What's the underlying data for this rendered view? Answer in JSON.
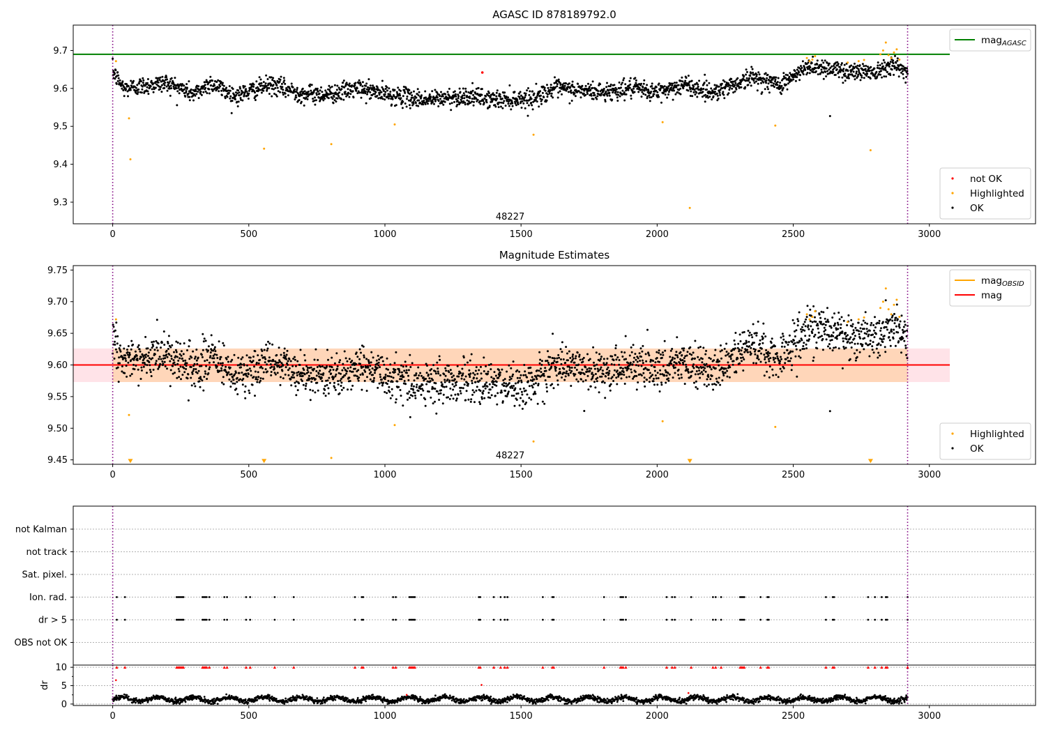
{
  "figure": {
    "panels": [
      {
        "title": "AGASC ID 878189792.0",
        "annotation": "48227"
      },
      {
        "title": "Magnitude Estimates",
        "annotation": "48227"
      },
      {
        "title": "",
        "annotation": ""
      }
    ]
  },
  "chart_data": [
    {
      "type": "scatter",
      "title": "AGASC ID 878189792.0",
      "xlabel": "",
      "ylabel": "",
      "xlim": [
        -145,
        3390
      ],
      "ylim": [
        9.243,
        9.767
      ],
      "xticks": [
        0,
        500,
        1000,
        1500,
        2000,
        2500,
        3000
      ],
      "yticks": [
        9.3,
        9.4,
        9.5,
        9.6,
        9.7
      ],
      "annotation": {
        "text": "48227",
        "x": 1460,
        "y": 9.245
      },
      "vlines": [
        {
          "x": 0,
          "color": "#800080",
          "style": "dotted"
        },
        {
          "x": 2920,
          "color": "#800080",
          "style": "dotted"
        }
      ],
      "hlines": [
        {
          "name": "mag_AGASC",
          "y": 9.69,
          "x_range": [
            -145,
            3075
          ],
          "color": "#008000"
        }
      ],
      "legend_top": {
        "position": "top-right",
        "entries": [
          {
            "label": "mag",
            "sub": "AGASC",
            "kind": "line",
            "color": "#008000"
          }
        ]
      },
      "legend_bottom": {
        "position": "bottom-right",
        "entries": [
          {
            "label": "not OK",
            "kind": "point",
            "color": "#ff0000"
          },
          {
            "label": "Highlighted",
            "kind": "point",
            "color": "#ffa500"
          },
          {
            "label": "OK",
            "kind": "point",
            "color": "#000000"
          }
        ]
      },
      "series": [
        {
          "name": "OK",
          "color": "#000000",
          "generator": {
            "x_range": [
              0,
              2920
            ],
            "count": 2400,
            "noise": 0.012,
            "trend": [
              [
                0,
                9.645
              ],
              [
                40,
                9.6
              ],
              [
                200,
                9.615
              ],
              [
                300,
                9.585
              ],
              [
                360,
                9.615
              ],
              [
                450,
                9.58
              ],
              [
                580,
                9.61
              ],
              [
                700,
                9.585
              ],
              [
                800,
                9.585
              ],
              [
                900,
                9.6
              ],
              [
                1000,
                9.585
              ],
              [
                1150,
                9.57
              ],
              [
                1300,
                9.58
              ],
              [
                1400,
                9.57
              ],
              [
                1550,
                9.575
              ],
              [
                1620,
                9.6
              ],
              [
                1800,
                9.59
              ],
              [
                1900,
                9.6
              ],
              [
                2000,
                9.59
              ],
              [
                2100,
                9.61
              ],
              [
                2200,
                9.59
              ],
              [
                2300,
                9.615
              ],
              [
                2350,
                9.63
              ],
              [
                2450,
                9.61
              ],
              [
                2500,
                9.63
              ],
              [
                2560,
                9.66
              ],
              [
                2700,
                9.645
              ],
              [
                2800,
                9.645
              ],
              [
                2860,
                9.665
              ],
              [
                2920,
                9.64
              ]
            ]
          }
        },
        {
          "name": "OK outliers",
          "color": "#000000",
          "points": [
            [
              2635,
              9.527
            ]
          ]
        },
        {
          "name": "Highlighted",
          "color": "#ffa500",
          "points": [
            [
              12,
              9.672
            ],
            [
              60,
              9.521
            ],
            [
              65,
              9.413
            ],
            [
              556,
              9.441
            ],
            [
              803,
              9.453
            ],
            [
              1036,
              9.505
            ],
            [
              1546,
              9.478
            ],
            [
              2020,
              9.511
            ],
            [
              2120,
              9.285
            ],
            [
              2434,
              9.502
            ],
            [
              2784,
              9.437
            ],
            [
              2550,
              9.68
            ],
            [
              2560,
              9.672
            ],
            [
              2570,
              9.676
            ],
            [
              2580,
              9.685
            ],
            [
              2700,
              9.668
            ],
            [
              2740,
              9.672
            ],
            [
              2760,
              9.675
            ],
            [
              2820,
              9.69
            ],
            [
              2830,
              9.7
            ],
            [
              2840,
              9.721
            ],
            [
              2850,
              9.688
            ],
            [
              2860,
              9.68
            ],
            [
              2870,
              9.695
            ],
            [
              2880,
              9.703
            ],
            [
              2890,
              9.676
            ]
          ]
        },
        {
          "name": "not OK",
          "color": "#ff0000",
          "points": [
            [
              1358,
              9.642
            ]
          ]
        }
      ]
    },
    {
      "type": "scatter",
      "title": "Magnitude Estimates",
      "xlabel": "",
      "ylabel": "",
      "xlim": [
        -145,
        3390
      ],
      "ylim": [
        9.443,
        9.757
      ],
      "xticks": [
        0,
        500,
        1000,
        1500,
        2000,
        2500,
        3000
      ],
      "yticks": [
        9.45,
        9.5,
        9.55,
        9.6,
        9.65,
        9.7,
        9.75
      ],
      "annotation": {
        "text": "48227",
        "x": 1460,
        "y": 9.447
      },
      "vlines": [
        {
          "x": 0,
          "color": "#800080",
          "style": "dotted"
        },
        {
          "x": 2920,
          "color": "#800080",
          "style": "dotted"
        }
      ],
      "hlines": [
        {
          "name": "mag",
          "y": 9.6,
          "x_range": [
            -145,
            3075
          ],
          "color": "#ff0000"
        }
      ],
      "bands": [
        {
          "name": "mag band",
          "y_range": [
            9.573,
            9.626
          ],
          "x_range": [
            -145,
            3075
          ],
          "color": "#ffc0cb"
        },
        {
          "name": "mag_OBSID band",
          "y_range": [
            9.573,
            9.626
          ],
          "x_range": [
            0,
            2920
          ],
          "color": "#ffa500"
        }
      ],
      "legend_top": {
        "position": "top-right",
        "entries": [
          {
            "label": "mag",
            "sub": "OBSID",
            "kind": "line",
            "color": "#ffa500"
          },
          {
            "label": "mag",
            "kind": "line",
            "color": "#ff0000"
          }
        ]
      },
      "legend_bottom": {
        "position": "bottom-right",
        "entries": [
          {
            "label": "Highlighted",
            "kind": "point",
            "color": "#ffa500"
          },
          {
            "label": "OK",
            "kind": "point",
            "color": "#000000"
          }
        ]
      },
      "series": [
        {
          "name": "OK",
          "color": "#000000",
          "generator": {
            "x_range": [
              0,
              2920
            ],
            "count": 2400,
            "noise": 0.017,
            "trend": [
              [
                0,
                9.645
              ],
              [
                40,
                9.605
              ],
              [
                200,
                9.615
              ],
              [
                300,
                9.585
              ],
              [
                360,
                9.615
              ],
              [
                450,
                9.58
              ],
              [
                580,
                9.61
              ],
              [
                700,
                9.585
              ],
              [
                800,
                9.58
              ],
              [
                900,
                9.6
              ],
              [
                1000,
                9.585
              ],
              [
                1150,
                9.57
              ],
              [
                1300,
                9.575
              ],
              [
                1400,
                9.57
              ],
              [
                1550,
                9.57
              ],
              [
                1620,
                9.6
              ],
              [
                1800,
                9.59
              ],
              [
                1900,
                9.6
              ],
              [
                2000,
                9.59
              ],
              [
                2100,
                9.61
              ],
              [
                2200,
                9.59
              ],
              [
                2300,
                9.615
              ],
              [
                2350,
                9.635
              ],
              [
                2450,
                9.61
              ],
              [
                2500,
                9.63
              ],
              [
                2560,
                9.66
              ],
              [
                2700,
                9.645
              ],
              [
                2800,
                9.645
              ],
              [
                2860,
                9.665
              ],
              [
                2920,
                9.64
              ]
            ]
          }
        },
        {
          "name": "OK outliers",
          "color": "#000000",
          "points": [
            [
              2635,
              9.527
            ],
            [
              1850,
              9.58
            ],
            [
              2090,
              9.58
            ]
          ]
        },
        {
          "name": "Highlighted",
          "color": "#ffa500",
          "points": [
            [
              12,
              9.672
            ],
            [
              60,
              9.521
            ],
            [
              1036,
              9.505
            ],
            [
              1546,
              9.479
            ],
            [
              2020,
              9.511
            ],
            [
              2434,
              9.502
            ],
            [
              803,
              9.453
            ],
            [
              2550,
              9.68
            ],
            [
              2560,
              9.672
            ],
            [
              2570,
              9.676
            ],
            [
              2580,
              9.685
            ],
            [
              2700,
              9.668
            ],
            [
              2740,
              9.672
            ],
            [
              2760,
              9.675
            ],
            [
              2820,
              9.69
            ],
            [
              2830,
              9.7
            ],
            [
              2840,
              9.721
            ],
            [
              2850,
              9.688
            ],
            [
              2860,
              9.68
            ],
            [
              2870,
              9.695
            ],
            [
              2880,
              9.703
            ],
            [
              2890,
              9.676
            ]
          ]
        },
        {
          "name": "Highlighted below range",
          "color": "#ffa500",
          "marker": "triangle-down",
          "points": [
            [
              65,
              9.447
            ],
            [
              556,
              9.447
            ],
            [
              2120,
              9.447
            ],
            [
              2784,
              9.447
            ]
          ]
        }
      ]
    },
    {
      "type": "scatter",
      "title": "",
      "xlim": [
        -145,
        3390
      ],
      "xticks": [
        0,
        500,
        1000,
        1500,
        2000,
        2500,
        3000
      ],
      "categories": [
        "not Kalman",
        "not track",
        "Sat. pixel.",
        "Ion. rad.",
        "dr > 5",
        "OBS not OK"
      ],
      "vlines": [
        {
          "x": 0,
          "color": "#800080",
          "style": "dotted"
        },
        {
          "x": 2920,
          "color": "#800080",
          "style": "dotted"
        }
      ],
      "flag_x": [
        15,
        45,
        235,
        240,
        245,
        250,
        255,
        260,
        330,
        335,
        340,
        345,
        355,
        410,
        420,
        490,
        505,
        595,
        665,
        890,
        915,
        920,
        1030,
        1040,
        1090,
        1095,
        1100,
        1105,
        1110,
        1345,
        1350,
        1400,
        1425,
        1440,
        1450,
        1580,
        1615,
        1620,
        1805,
        1865,
        1870,
        1875,
        1885,
        2035,
        2055,
        2065,
        2125,
        2205,
        2215,
        2235,
        2305,
        2310,
        2315,
        2320,
        2380,
        2405,
        2410,
        2620,
        2645,
        2650,
        2775,
        2800,
        2825,
        2840,
        2845,
        2920
      ],
      "flag_rows": [
        "Ion. rad.",
        "dr > 5"
      ],
      "dr_subplot": {
        "ylabel": "dr",
        "yticks": [
          0,
          5,
          10
        ],
        "ylim": [
          -0.4,
          10.6
        ],
        "dr_clip": 10,
        "clipped_color": "#ff0000",
        "extra_red_points": [
          [
            12,
            6.5
          ],
          [
            1355,
            5.2
          ],
          [
            1080,
            2.5
          ],
          [
            2115,
            3.0
          ]
        ],
        "generator": {
          "x_range": [
            0,
            2920
          ],
          "count": 2400,
          "base": 1.3,
          "amplitude": 0.6,
          "noise": 0.35
        }
      }
    }
  ]
}
